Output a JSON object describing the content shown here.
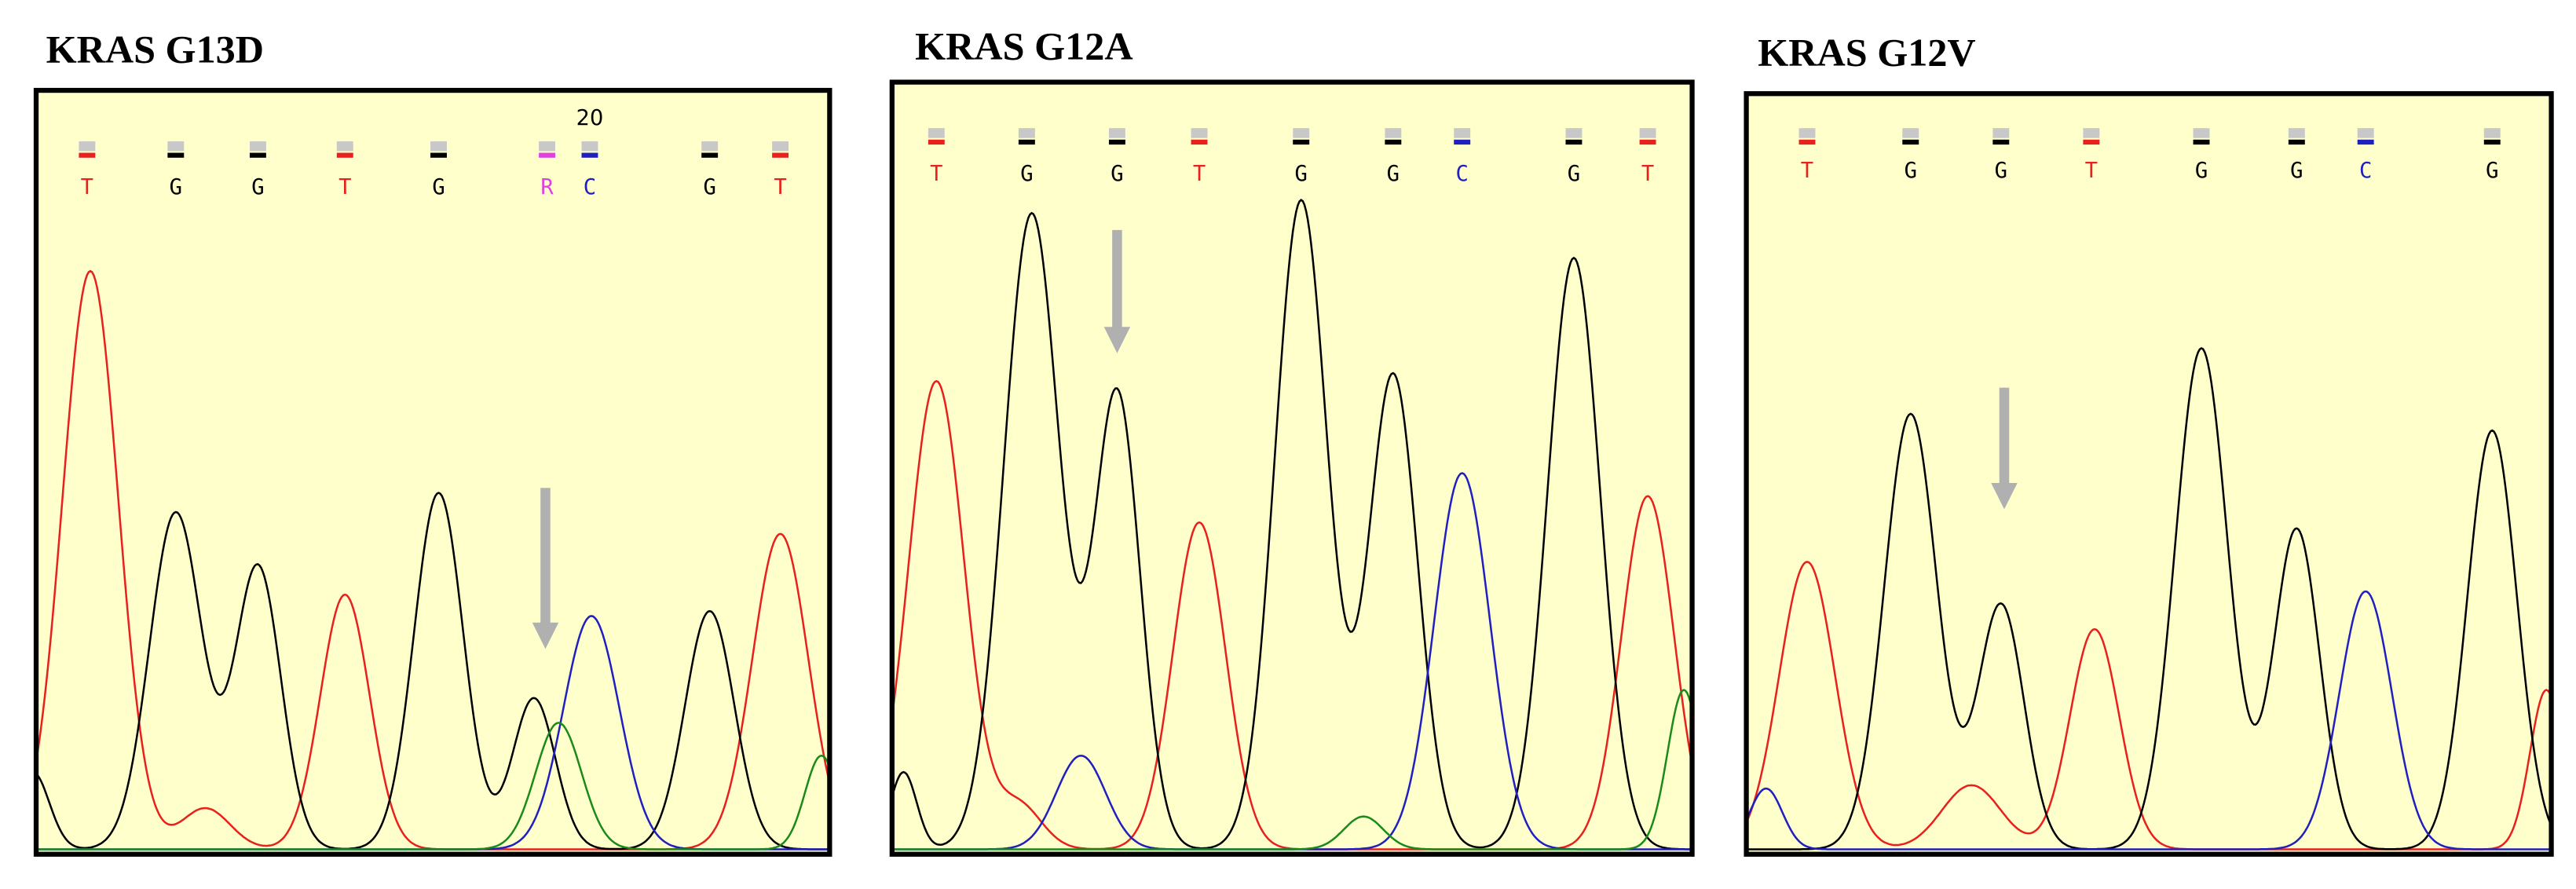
{
  "panels": [
    {
      "title": "KRAS G13D",
      "position_label": "20",
      "bases": [
        {
          "letter": "T",
          "color": "#e8201e"
        },
        {
          "letter": "G",
          "color": "#000000"
        },
        {
          "letter": "G",
          "color": "#000000"
        },
        {
          "letter": "T",
          "color": "#e8201e"
        },
        {
          "letter": "G",
          "color": "#000000"
        },
        {
          "letter": "R",
          "color": "#e040e0"
        },
        {
          "letter": "C",
          "color": "#2020c0"
        },
        {
          "letter": "G",
          "color": "#000000"
        },
        {
          "letter": "T",
          "color": "#e8201e"
        }
      ]
    },
    {
      "title": "KRAS G12A",
      "bases": [
        {
          "letter": "T",
          "color": "#e8201e"
        },
        {
          "letter": "G",
          "color": "#000000"
        },
        {
          "letter": "G",
          "color": "#000000"
        },
        {
          "letter": "T",
          "color": "#e8201e"
        },
        {
          "letter": "G",
          "color": "#000000"
        },
        {
          "letter": "G",
          "color": "#000000"
        },
        {
          "letter": "C",
          "color": "#2020c0"
        },
        {
          "letter": "G",
          "color": "#000000"
        },
        {
          "letter": "T",
          "color": "#e8201e"
        }
      ]
    },
    {
      "title": "KRAS G12V",
      "bases": [
        {
          "letter": "T",
          "color": "#e8201e"
        },
        {
          "letter": "G",
          "color": "#000000"
        },
        {
          "letter": "G",
          "color": "#000000"
        },
        {
          "letter": "T",
          "color": "#e8201e"
        },
        {
          "letter": "G",
          "color": "#000000"
        },
        {
          "letter": "G",
          "color": "#000000"
        },
        {
          "letter": "C",
          "color": "#2020c0"
        },
        {
          "letter": "G",
          "color": "#000000"
        }
      ]
    }
  ]
}
